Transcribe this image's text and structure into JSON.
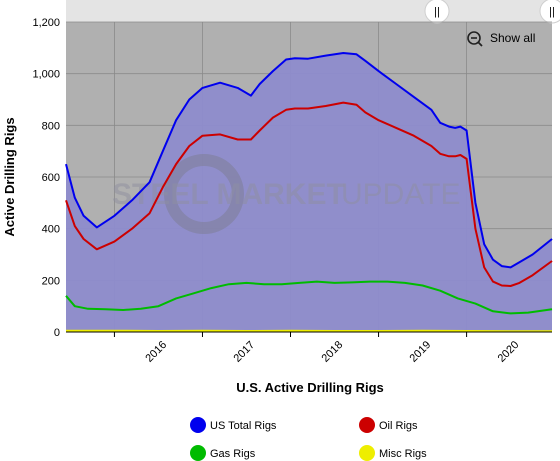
{
  "chart_data": {
    "type": "line",
    "title": "",
    "xlabel": "U.S. Active Drilling Rigs",
    "ylabel": "Active Drilling Rigs",
    "ylim": [
      0,
      1200
    ],
    "yticks": [
      "0",
      "200",
      "400",
      "600",
      "800",
      "1,000",
      "1,200"
    ],
    "xlim": [
      2015.45,
      2020.97
    ],
    "xticks": [
      "2016",
      "2017",
      "2018",
      "2019",
      "2020"
    ],
    "grid": true,
    "legend_position": "bottom",
    "series": [
      {
        "name": "US Total Rigs",
        "color": "#0000ee",
        "x": [
          2015.45,
          2015.55,
          2015.65,
          2015.8,
          2016.0,
          2016.2,
          2016.4,
          2016.55,
          2016.7,
          2016.85,
          2017.0,
          2017.2,
          2017.4,
          2017.55,
          2017.65,
          2017.8,
          2017.95,
          2018.05,
          2018.2,
          2018.4,
          2018.6,
          2018.75,
          2018.85,
          2019.0,
          2019.2,
          2019.4,
          2019.6,
          2019.7,
          2019.8,
          2019.87,
          2019.93,
          2020.0,
          2020.1,
          2020.2,
          2020.3,
          2020.4,
          2020.5,
          2020.6,
          2020.75,
          2020.97
        ],
        "y": [
          650,
          520,
          450,
          405,
          450,
          510,
          580,
          700,
          820,
          900,
          945,
          965,
          945,
          915,
          960,
          1010,
          1055,
          1060,
          1058,
          1070,
          1080,
          1075,
          1050,
          1010,
          960,
          910,
          860,
          810,
          795,
          790,
          795,
          780,
          500,
          340,
          280,
          255,
          250,
          270,
          300,
          360
        ]
      },
      {
        "name": "Oil Rigs",
        "color": "#cc0000",
        "x": [
          2015.45,
          2015.55,
          2015.65,
          2015.8,
          2016.0,
          2016.2,
          2016.4,
          2016.55,
          2016.7,
          2016.85,
          2017.0,
          2017.2,
          2017.4,
          2017.55,
          2017.65,
          2017.8,
          2017.95,
          2018.05,
          2018.2,
          2018.4,
          2018.6,
          2018.75,
          2018.85,
          2019.0,
          2019.2,
          2019.4,
          2019.6,
          2019.7,
          2019.8,
          2019.87,
          2019.93,
          2020.0,
          2020.1,
          2020.2,
          2020.3,
          2020.4,
          2020.5,
          2020.6,
          2020.75,
          2020.97
        ],
        "y": [
          510,
          410,
          360,
          320,
          350,
          400,
          460,
          560,
          650,
          720,
          760,
          765,
          745,
          745,
          780,
          830,
          860,
          865,
          865,
          875,
          888,
          880,
          850,
          820,
          790,
          760,
          720,
          690,
          680,
          680,
          685,
          670,
          400,
          250,
          195,
          180,
          178,
          190,
          220,
          275
        ]
      },
      {
        "name": "Gas Rigs",
        "color": "#00bb00",
        "x": [
          2015.45,
          2015.55,
          2015.7,
          2015.9,
          2016.1,
          2016.3,
          2016.5,
          2016.7,
          2016.9,
          2017.1,
          2017.3,
          2017.5,
          2017.7,
          2017.9,
          2018.1,
          2018.3,
          2018.5,
          2018.7,
          2018.9,
          2019.1,
          2019.3,
          2019.5,
          2019.7,
          2019.9,
          2020.1,
          2020.3,
          2020.5,
          2020.7,
          2020.97
        ],
        "y": [
          140,
          100,
          90,
          88,
          85,
          90,
          100,
          130,
          150,
          170,
          185,
          190,
          185,
          185,
          190,
          195,
          190,
          192,
          195,
          195,
          190,
          180,
          160,
          130,
          110,
          80,
          72,
          75,
          88
        ]
      },
      {
        "name": "Misc Rigs",
        "color": "#eeee00",
        "x": [
          2015.45,
          2016.0,
          2016.5,
          2017.0,
          2017.5,
          2018.0,
          2018.5,
          2019.0,
          2019.5,
          2020.0,
          2020.5,
          2020.97
        ],
        "y": [
          5,
          5,
          4,
          5,
          4,
          5,
          4,
          4,
          5,
          4,
          3,
          3
        ]
      }
    ]
  },
  "watermark": {
    "left": "STEEL MARKET",
    "right": "UPDATE"
  },
  "controls": {
    "show_all": "Show all",
    "left_handle_glyph": "||",
    "right_handle_glyph": "||"
  }
}
